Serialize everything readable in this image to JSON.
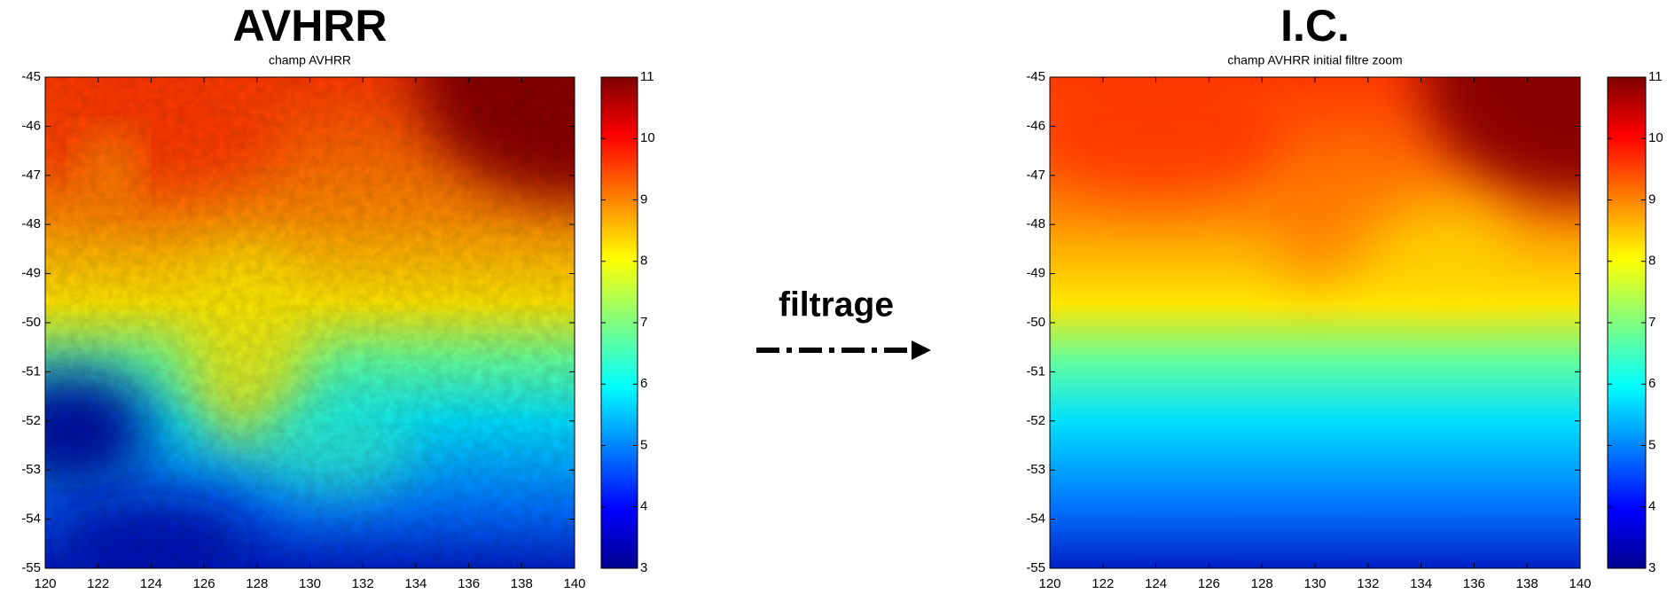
{
  "chart_data": [
    {
      "type": "heatmap",
      "title": "AVHRR",
      "subtitle": "champ AVHRR",
      "xlim": [
        120,
        140
      ],
      "xticks": [
        120,
        122,
        124,
        126,
        128,
        130,
        132,
        134,
        136,
        138,
        140
      ],
      "ylim": [
        -55,
        -45
      ],
      "yticks": [
        -45,
        -46,
        -47,
        -48,
        -49,
        -50,
        -51,
        -52,
        -53,
        -54,
        -55
      ],
      "clim": [
        3,
        11
      ],
      "cticks": [
        3,
        4,
        5,
        6,
        7,
        8,
        9,
        10,
        11
      ],
      "texture": true
    },
    {
      "type": "heatmap",
      "title": "I.C.",
      "subtitle": "champ AVHRR initial filtre zoom",
      "xlim": [
        120,
        140
      ],
      "xticks": [
        120,
        122,
        124,
        126,
        128,
        130,
        132,
        134,
        136,
        138,
        140
      ],
      "ylim": [
        -55,
        -45
      ],
      "yticks": [
        -45,
        -46,
        -47,
        -48,
        -49,
        -50,
        -51,
        -52,
        -53,
        -54,
        -55
      ],
      "clim": [
        3,
        11
      ],
      "cticks": [
        3,
        4,
        5,
        6,
        7,
        8,
        9,
        10,
        11
      ],
      "texture": false
    }
  ],
  "arrow_label": "filtrage"
}
